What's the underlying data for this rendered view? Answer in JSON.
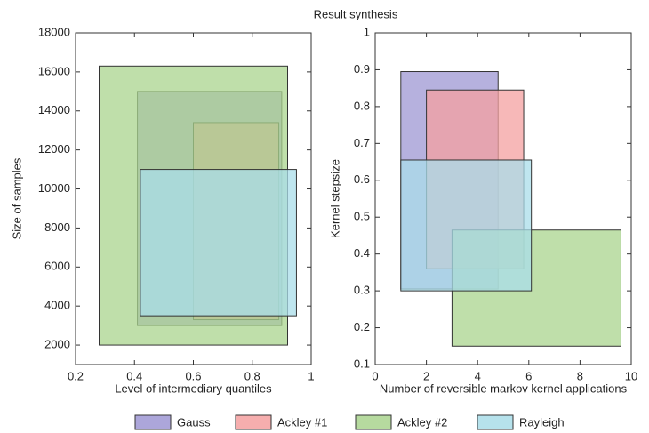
{
  "title": "Result synthesis",
  "chart_data": [
    {
      "type": "rect",
      "xlabel": "Level of intermediary quantiles",
      "ylabel": "Size of samples",
      "xlim": [
        0.2,
        1
      ],
      "xticks": [
        0.2,
        0.4,
        0.6,
        0.8,
        1
      ],
      "ylim": [
        1000,
        18000
      ],
      "yticks": [
        2000,
        4000,
        6000,
        8000,
        10000,
        12000,
        14000,
        16000,
        18000
      ],
      "series": [
        {
          "name": "Gauss",
          "color": "#9d97d3",
          "x": [
            0.41,
            0.9
          ],
          "values": [
            3000,
            15000
          ]
        },
        {
          "name": "Ackley #1",
          "color": "#f4a0a0",
          "x": [
            0.6,
            0.89
          ],
          "values": [
            3300,
            13400
          ]
        },
        {
          "name": "Ackley #2",
          "color": "#a9d48e",
          "x": [
            0.28,
            0.92
          ],
          "values": [
            2000,
            16300
          ]
        },
        {
          "name": "Rayleigh",
          "color": "#a9dde9",
          "x": [
            0.42,
            0.95
          ],
          "values": [
            3500,
            11000
          ]
        }
      ]
    },
    {
      "type": "rect",
      "xlabel": "Number of reversible markov kernel applications",
      "ylabel": "Kernel stepsize",
      "xlim": [
        0,
        10
      ],
      "xticks": [
        0,
        2,
        4,
        6,
        8,
        10
      ],
      "ylim": [
        0.1,
        1
      ],
      "yticks": [
        0.1,
        0.2,
        0.3,
        0.4,
        0.5,
        0.6,
        0.7,
        0.8,
        0.9,
        1
      ],
      "series": [
        {
          "x": [
            1,
            4.8
          ],
          "values": [
            0.305,
            0.895
          ]
        },
        {
          "x": [
            2,
            5.8
          ],
          "values": [
            0.36,
            0.845
          ]
        },
        {
          "x": [
            3,
            9.6
          ],
          "values": [
            0.15,
            0.465
          ]
        },
        {
          "x": [
            1,
            6.1
          ],
          "values": [
            0.3,
            0.655
          ]
        }
      ]
    }
  ]
}
